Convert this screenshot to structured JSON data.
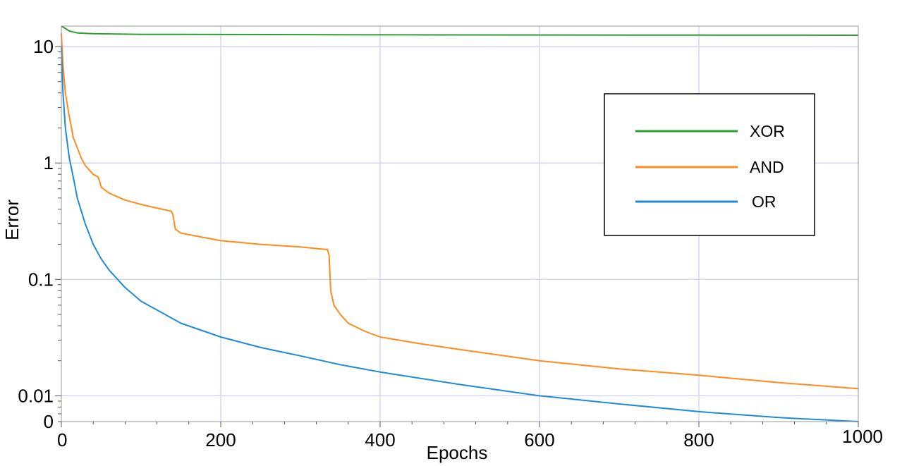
{
  "chart_data": {
    "type": "line",
    "title": "",
    "xlabel": "Epochs",
    "ylabel": "Error",
    "xlim": [
      0,
      1000
    ],
    "ylim": [
      0.006,
      15
    ],
    "y_scale": "log",
    "grid": true,
    "grid_color": "#d0d0f4",
    "legend_position": "top-right",
    "x_ticks": [
      {
        "value": 0,
        "label": "0"
      },
      {
        "value": 200,
        "label": "200"
      },
      {
        "value": 400,
        "label": "400"
      },
      {
        "value": 600,
        "label": "600"
      },
      {
        "value": 800,
        "label": "800"
      },
      {
        "value": 1000,
        "label": "1000"
      }
    ],
    "y_ticks": [
      {
        "value": 10,
        "label": "10"
      },
      {
        "value": 1,
        "label": "1"
      },
      {
        "value": 0.1,
        "label": "0.1"
      },
      {
        "value": 0.01,
        "label": "0.01"
      },
      {
        "value": 0.006,
        "label": "0"
      }
    ],
    "series": [
      {
        "name": "XOR",
        "color": "#2ca02c",
        "points": [
          [
            0,
            15
          ],
          [
            5,
            14.3
          ],
          [
            10,
            13.6
          ],
          [
            20,
            13.1
          ],
          [
            40,
            12.9
          ],
          [
            100,
            12.75
          ],
          [
            200,
            12.7
          ],
          [
            400,
            12.62
          ],
          [
            600,
            12.58
          ],
          [
            800,
            12.55
          ],
          [
            1000,
            12.52
          ]
        ]
      },
      {
        "name": "AND",
        "color": "#ff8c1a",
        "points": [
          [
            0,
            13
          ],
          [
            2,
            7
          ],
          [
            5,
            4
          ],
          [
            10,
            2.5
          ],
          [
            15,
            1.65
          ],
          [
            20,
            1.35
          ],
          [
            25,
            1.1
          ],
          [
            30,
            0.95
          ],
          [
            40,
            0.8
          ],
          [
            46,
            0.76
          ],
          [
            48,
            0.7
          ],
          [
            50,
            0.62
          ],
          [
            60,
            0.55
          ],
          [
            80,
            0.48
          ],
          [
            100,
            0.44
          ],
          [
            120,
            0.41
          ],
          [
            138,
            0.385
          ],
          [
            140,
            0.36
          ],
          [
            143,
            0.27
          ],
          [
            150,
            0.25
          ],
          [
            170,
            0.235
          ],
          [
            200,
            0.215
          ],
          [
            250,
            0.2
          ],
          [
            300,
            0.19
          ],
          [
            334,
            0.18
          ],
          [
            336,
            0.16
          ],
          [
            338,
            0.08
          ],
          [
            342,
            0.06
          ],
          [
            350,
            0.05
          ],
          [
            360,
            0.042
          ],
          [
            380,
            0.036
          ],
          [
            400,
            0.032
          ],
          [
            450,
            0.028
          ],
          [
            500,
            0.025
          ],
          [
            600,
            0.02
          ],
          [
            700,
            0.017
          ],
          [
            800,
            0.015
          ],
          [
            900,
            0.013
          ],
          [
            1000,
            0.0115
          ]
        ]
      },
      {
        "name": "OR",
        "color": "#1f8ad6",
        "points": [
          [
            0,
            10
          ],
          [
            2,
            4
          ],
          [
            5,
            2
          ],
          [
            10,
            1.1
          ],
          [
            15,
            0.75
          ],
          [
            20,
            0.5
          ],
          [
            30,
            0.3
          ],
          [
            40,
            0.2
          ],
          [
            50,
            0.15
          ],
          [
            60,
            0.12
          ],
          [
            80,
            0.085
          ],
          [
            100,
            0.065
          ],
          [
            150,
            0.042
          ],
          [
            200,
            0.032
          ],
          [
            250,
            0.026
          ],
          [
            300,
            0.022
          ],
          [
            350,
            0.0185
          ],
          [
            400,
            0.016
          ],
          [
            500,
            0.0125
          ],
          [
            600,
            0.01
          ],
          [
            700,
            0.0085
          ],
          [
            800,
            0.0073
          ],
          [
            900,
            0.0065
          ],
          [
            1000,
            0.006
          ]
        ]
      }
    ]
  }
}
